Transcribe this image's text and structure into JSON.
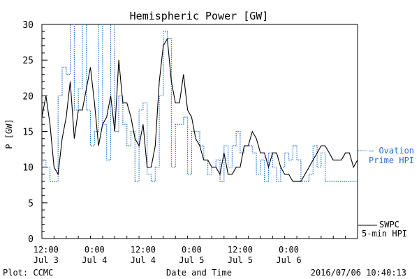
{
  "chart_data": {
    "type": "line",
    "title": "Hemispheric Power [GW]",
    "ylabel": "P [GW]",
    "xlabel": "Date and Time",
    "ylim": [
      0,
      30
    ],
    "yticks": [
      0,
      5,
      10,
      15,
      20,
      25,
      30
    ],
    "xlim": [
      0,
      78
    ],
    "xticks": [
      {
        "x": 1,
        "time": "12:00",
        "date": "Jul 3"
      },
      {
        "x": 13,
        "time": "0:00",
        "date": "Jul 4"
      },
      {
        "x": 25,
        "time": "12:00",
        "date": "Jul 4"
      },
      {
        "x": 37,
        "time": "0:00",
        "date": "Jul 5"
      },
      {
        "x": 49,
        "time": "12:00",
        "date": "Jul 5"
      },
      {
        "x": 61,
        "time": "0:00",
        "date": "Jul 6"
      }
    ],
    "x_unit": "hours since 11:00 Jul 3",
    "grid": false,
    "legend_placement": "right",
    "footer_left": "Plot: CCMC",
    "footer_right": "2016/07/06 10:40:13",
    "series": [
      {
        "name": "Ovation Prime HPI",
        "legend_line1": "— Ovation",
        "legend_line2": "Prime HPI",
        "style": "dotted-step",
        "color": "#1f6fd1",
        "x": [
          0,
          1,
          2,
          4,
          5,
          6,
          7,
          8,
          9,
          10,
          11,
          12,
          13,
          14,
          15,
          16,
          17,
          18,
          19,
          20,
          21,
          22,
          23,
          24,
          25,
          26,
          27,
          28,
          29,
          30,
          31,
          32,
          33,
          34,
          35,
          36,
          37,
          38,
          39,
          40,
          41,
          42,
          43,
          44,
          45,
          46,
          47,
          48,
          49,
          50,
          51,
          52,
          53,
          54,
          55,
          56,
          57,
          58,
          59,
          60,
          61,
          62,
          63,
          64,
          65,
          66,
          67,
          68,
          69,
          70,
          71,
          72,
          73,
          74,
          75,
          76,
          77,
          78
        ],
        "values": [
          11,
          10,
          8,
          20,
          24,
          23,
          31,
          18,
          21,
          31,
          18,
          13,
          15,
          31,
          16,
          11,
          31,
          15,
          20,
          16,
          13,
          15,
          8,
          18,
          19,
          9,
          8,
          10,
          20,
          29,
          28,
          10,
          16,
          16,
          17,
          9,
          15,
          15,
          13,
          11,
          9,
          10,
          11,
          8,
          13,
          10,
          13,
          15,
          12,
          13,
          13,
          12,
          9,
          11,
          8,
          12,
          10,
          8,
          10,
          12,
          11,
          13,
          11,
          8,
          8,
          9,
          13,
          10,
          12,
          8,
          8,
          8,
          8,
          8,
          8,
          8,
          8,
          8
        ]
      },
      {
        "name": "SWPC 5-min HPI",
        "legend_line1": "SWPC",
        "legend_line2": "5-min HPI",
        "style": "solid",
        "color": "#000000",
        "x": [
          0,
          1,
          2,
          3,
          4,
          5,
          6,
          7,
          8,
          9,
          10,
          11,
          12,
          13,
          14,
          15,
          16,
          17,
          18,
          19,
          20,
          21,
          22,
          23,
          24,
          25,
          26,
          27,
          28,
          29,
          30,
          31,
          32,
          33,
          34,
          35,
          36,
          37,
          38,
          39,
          40,
          41,
          42,
          43,
          44,
          45,
          46,
          47,
          48,
          49,
          50,
          51,
          52,
          53,
          54,
          55,
          56,
          57,
          58,
          59,
          60,
          61,
          62,
          63,
          64,
          65,
          66,
          67,
          68,
          69,
          70,
          71,
          72,
          73,
          74,
          75,
          76,
          77,
          78
        ],
        "values": [
          17,
          20,
          16,
          10,
          9,
          14,
          17,
          22,
          14,
          18,
          18,
          21,
          24,
          19,
          13,
          16,
          17,
          20,
          15,
          25,
          19,
          19,
          17,
          14,
          13,
          16,
          10,
          10,
          13,
          22,
          27,
          28,
          22,
          19,
          19,
          23,
          18,
          17,
          14,
          13,
          11,
          11,
          10,
          10,
          9,
          12,
          9,
          9,
          10,
          10,
          13,
          13,
          15,
          14,
          12,
          12,
          10,
          12,
          12,
          10,
          9,
          9,
          8,
          8,
          8,
          9,
          10,
          11,
          12,
          13,
          13,
          12,
          11,
          11,
          11,
          12,
          12,
          10,
          11
        ]
      }
    ]
  }
}
